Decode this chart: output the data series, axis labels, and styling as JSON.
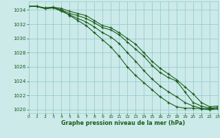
{
  "title": "Graphe pression niveau de la mer (hPa)",
  "bg_color": "#cceaea",
  "grid_color": "#99cccc",
  "line_color": "#1a5c1a",
  "xlim": [
    0,
    23
  ],
  "ylim": [
    1019.5,
    1035.2
  ],
  "yticks": [
    1020,
    1022,
    1024,
    1026,
    1028,
    1030,
    1032,
    1034
  ],
  "xticks": [
    0,
    1,
    2,
    3,
    4,
    5,
    6,
    7,
    8,
    9,
    10,
    11,
    12,
    13,
    14,
    15,
    16,
    17,
    18,
    19,
    20,
    21,
    22,
    23
  ],
  "series": [
    [
      1034.5,
      1034.5,
      1034.3,
      1034.4,
      1034.2,
      1033.8,
      1033.5,
      1033.2,
      1032.5,
      1031.8,
      1031.5,
      1030.8,
      1030.0,
      1029.2,
      1028.0,
      1026.8,
      1025.8,
      1025.0,
      1024.2,
      1023.2,
      1022.2,
      1021.0,
      1020.4,
      1020.5
    ],
    [
      1034.5,
      1034.5,
      1034.2,
      1034.3,
      1034.0,
      1033.5,
      1033.2,
      1032.8,
      1032.2,
      1031.5,
      1031.2,
      1030.5,
      1029.5,
      1028.5,
      1027.5,
      1026.2,
      1025.2,
      1024.5,
      1024.0,
      1022.5,
      1021.0,
      1020.5,
      1020.2,
      1020.3
    ],
    [
      1034.5,
      1034.5,
      1034.2,
      1034.3,
      1033.8,
      1033.3,
      1032.8,
      1032.3,
      1031.6,
      1030.8,
      1030.2,
      1029.3,
      1028.0,
      1026.8,
      1025.5,
      1024.3,
      1023.3,
      1022.5,
      1021.8,
      1021.0,
      1020.5,
      1020.2,
      1020.1,
      1020.2
    ],
    [
      1034.5,
      1034.5,
      1034.2,
      1034.3,
      1034.0,
      1033.2,
      1032.5,
      1031.8,
      1030.8,
      1029.8,
      1028.8,
      1027.5,
      1026.0,
      1024.8,
      1023.8,
      1022.8,
      1021.8,
      1021.0,
      1020.4,
      1020.2,
      1020.2,
      1020.1,
      1020.0,
      1020.1
    ]
  ]
}
